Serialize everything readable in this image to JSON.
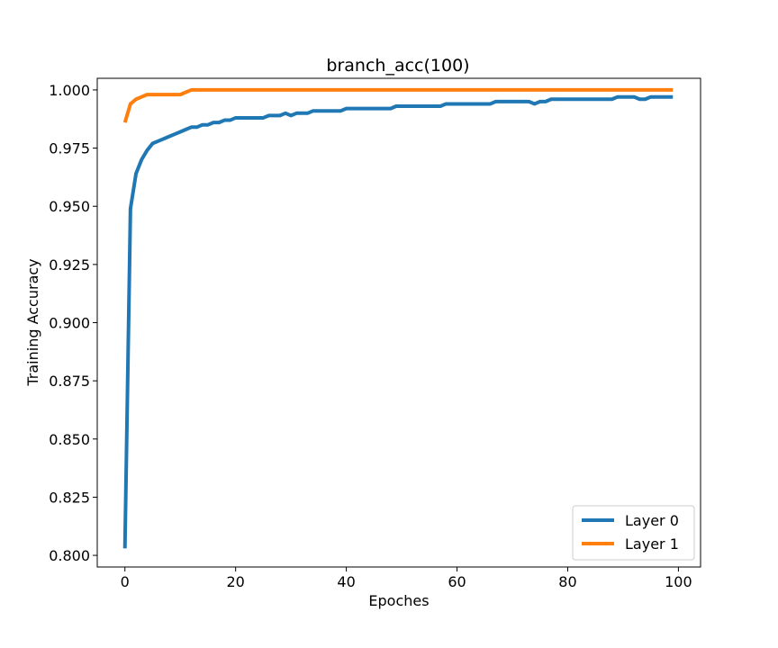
{
  "chart_data": {
    "type": "line",
    "title": "branch_acc(100)",
    "xlabel": "Epoches",
    "ylabel": "Training Accuracy",
    "xlim": [
      -5,
      104
    ],
    "ylim": [
      0.795,
      1.005
    ],
    "xticks": [
      0,
      20,
      40,
      60,
      80,
      100
    ],
    "yticks": [
      0.8,
      0.825,
      0.85,
      0.875,
      0.9,
      0.925,
      0.95,
      0.975,
      1.0
    ],
    "xtick_labels": [
      "0",
      "20",
      "40",
      "60",
      "80",
      "100"
    ],
    "ytick_labels": [
      "0.800",
      "0.825",
      "0.850",
      "0.875",
      "0.900",
      "0.925",
      "0.950",
      "0.975",
      "1.000"
    ],
    "grid": false,
    "legend_position": "lower-right",
    "series": [
      {
        "name": "Layer 0",
        "color": "#1f77b4",
        "x": [
          0,
          1,
          2,
          3,
          4,
          5,
          6,
          7,
          8,
          9,
          10,
          11,
          12,
          13,
          14,
          15,
          16,
          17,
          18,
          19,
          20,
          21,
          22,
          23,
          24,
          25,
          26,
          27,
          28,
          29,
          30,
          31,
          32,
          33,
          34,
          35,
          36,
          37,
          38,
          39,
          40,
          41,
          42,
          43,
          44,
          45,
          46,
          47,
          48,
          49,
          50,
          51,
          52,
          53,
          54,
          55,
          56,
          57,
          58,
          59,
          60,
          61,
          62,
          63,
          64,
          65,
          66,
          67,
          68,
          69,
          70,
          71,
          72,
          73,
          74,
          75,
          76,
          77,
          78,
          79,
          80,
          81,
          82,
          83,
          84,
          85,
          86,
          87,
          88,
          89,
          90,
          91,
          92,
          93,
          94,
          95,
          96,
          97,
          98,
          99
        ],
        "values": [
          0.803,
          0.949,
          0.964,
          0.97,
          0.974,
          0.977,
          0.978,
          0.979,
          0.98,
          0.981,
          0.982,
          0.983,
          0.984,
          0.984,
          0.985,
          0.985,
          0.986,
          0.986,
          0.987,
          0.987,
          0.988,
          0.988,
          0.988,
          0.988,
          0.988,
          0.988,
          0.989,
          0.989,
          0.989,
          0.99,
          0.989,
          0.99,
          0.99,
          0.99,
          0.991,
          0.991,
          0.991,
          0.991,
          0.991,
          0.991,
          0.992,
          0.992,
          0.992,
          0.992,
          0.992,
          0.992,
          0.992,
          0.992,
          0.992,
          0.993,
          0.993,
          0.993,
          0.993,
          0.993,
          0.993,
          0.993,
          0.993,
          0.993,
          0.994,
          0.994,
          0.994,
          0.994,
          0.994,
          0.994,
          0.994,
          0.994,
          0.994,
          0.995,
          0.995,
          0.995,
          0.995,
          0.995,
          0.995,
          0.995,
          0.994,
          0.995,
          0.995,
          0.996,
          0.996,
          0.996,
          0.996,
          0.996,
          0.996,
          0.996,
          0.996,
          0.996,
          0.996,
          0.996,
          0.996,
          0.997,
          0.997,
          0.997,
          0.997,
          0.996,
          0.996,
          0.997,
          0.997,
          0.997,
          0.997,
          0.997
        ]
      },
      {
        "name": "Layer 1",
        "color": "#ff7f0e",
        "x": [
          0,
          1,
          2,
          3,
          4,
          5,
          6,
          7,
          8,
          9,
          10,
          11,
          12,
          13,
          14,
          15,
          16,
          17,
          18,
          19,
          20,
          21,
          22,
          23,
          24,
          25,
          26,
          27,
          28,
          29,
          30,
          31,
          32,
          33,
          34,
          35,
          36,
          37,
          38,
          39,
          40,
          41,
          42,
          43,
          44,
          45,
          46,
          47,
          48,
          49,
          50,
          51,
          52,
          53,
          54,
          55,
          56,
          57,
          58,
          59,
          60,
          61,
          62,
          63,
          64,
          65,
          66,
          67,
          68,
          69,
          70,
          71,
          72,
          73,
          74,
          75,
          76,
          77,
          78,
          79,
          80,
          81,
          82,
          83,
          84,
          85,
          86,
          87,
          88,
          89,
          90,
          91,
          92,
          93,
          94,
          95,
          96,
          97,
          98,
          99
        ],
        "values": [
          0.986,
          0.994,
          0.996,
          0.997,
          0.998,
          0.998,
          0.998,
          0.998,
          0.998,
          0.998,
          0.998,
          0.999,
          1.0,
          1.0,
          1.0,
          1.0,
          1.0,
          1.0,
          1.0,
          1.0,
          1.0,
          1.0,
          1.0,
          1.0,
          1.0,
          1.0,
          1.0,
          1.0,
          1.0,
          1.0,
          1.0,
          1.0,
          1.0,
          1.0,
          1.0,
          1.0,
          1.0,
          1.0,
          1.0,
          1.0,
          1.0,
          1.0,
          1.0,
          1.0,
          1.0,
          1.0,
          1.0,
          1.0,
          1.0,
          1.0,
          1.0,
          1.0,
          1.0,
          1.0,
          1.0,
          1.0,
          1.0,
          1.0,
          1.0,
          1.0,
          1.0,
          1.0,
          1.0,
          1.0,
          1.0,
          1.0,
          1.0,
          1.0,
          1.0,
          1.0,
          1.0,
          1.0,
          1.0,
          1.0,
          1.0,
          1.0,
          1.0,
          1.0,
          1.0,
          1.0,
          1.0,
          1.0,
          1.0,
          1.0,
          1.0,
          1.0,
          1.0,
          1.0,
          1.0,
          1.0,
          1.0,
          1.0,
          1.0,
          1.0,
          1.0,
          1.0,
          1.0,
          1.0,
          1.0,
          1.0
        ]
      }
    ]
  }
}
